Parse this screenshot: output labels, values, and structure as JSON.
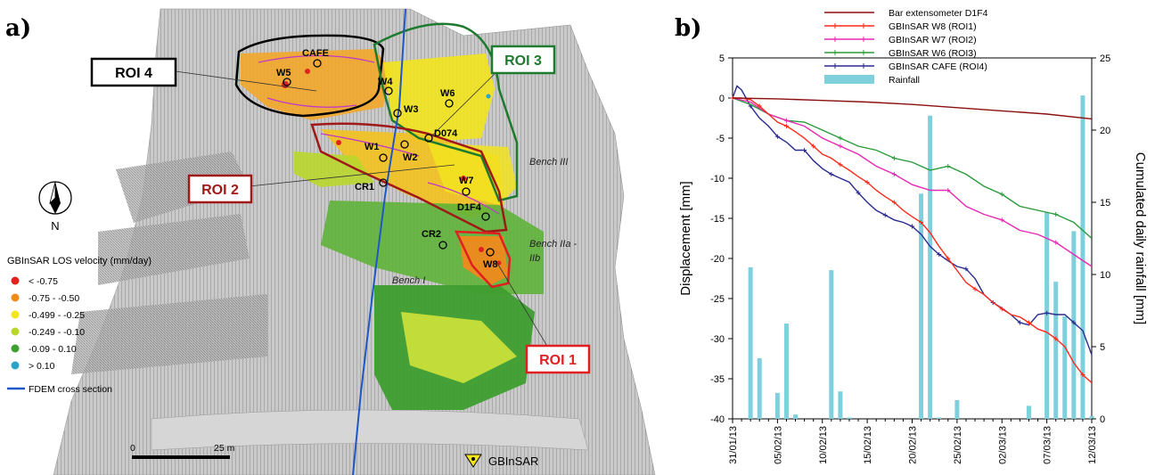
{
  "panel_a": {
    "label": "a)",
    "roi_labels": [
      {
        "text": "ROI 4",
        "color": "#000000"
      },
      {
        "text": "ROI 3",
        "color": "#1e7a2e"
      },
      {
        "text": "ROI 2",
        "color": "#a01818"
      },
      {
        "text": "ROI 1",
        "color": "#e02020"
      }
    ],
    "points": [
      "CAFE",
      "W5",
      "W4",
      "W3",
      "W6",
      "D074",
      "W1",
      "W2",
      "CR1",
      "W7",
      "D1F4",
      "CR2",
      "W8"
    ],
    "bench_labels": [
      "Bench III",
      "Bench IIa -",
      "IIb",
      "Bench I"
    ],
    "north_label": "N",
    "velocity_legend": {
      "title": "GBInSAR LOS velocity (mm/day)",
      "items": [
        {
          "label": "< -0.75",
          "color": "#e0231f"
        },
        {
          "label": "-0.75 - -0.50",
          "color": "#f08a1e"
        },
        {
          "label": "-0.499 - -0.25",
          "color": "#f2e41e"
        },
        {
          "label": "-0.249 - -0.10",
          "color": "#b9d62c"
        },
        {
          "label": "-0.09 - 0.10",
          "color": "#3e9e2f"
        },
        {
          "label": "> 0.10",
          "color": "#2aa3c9"
        }
      ],
      "line_label": "FDEM cross section",
      "line_color": "#1f57c7"
    },
    "scale": {
      "zero": "0",
      "end": "25 m"
    },
    "gbinsar_label": "GBInSAR"
  },
  "chart_data": {
    "type": "line",
    "panel_label": "b)",
    "xlabel": "",
    "ylabel": "Displacement [mm]",
    "y2label": "Cumulated daily rainfall [mm]",
    "ylim": [
      -40,
      5
    ],
    "y2lim": [
      0,
      25
    ],
    "yticks": [
      5,
      0,
      -5,
      -10,
      -15,
      -20,
      -25,
      -30,
      -35,
      -40
    ],
    "y2ticks": [
      25,
      20,
      15,
      10,
      5,
      0
    ],
    "xlim": [
      0,
      40
    ],
    "xtick_labels": [
      "31/01/13",
      "05/02/13",
      "10/02/13",
      "15/02/13",
      "20/02/13",
      "25/02/13",
      "02/03/13",
      "07/03/13",
      "12/03/13"
    ],
    "xtick_days": [
      0,
      5,
      10,
      15,
      20,
      25,
      30,
      35,
      40
    ],
    "legend": [
      {
        "name": "Bar extensometer D1F4",
        "color": "#8b0f0f",
        "kind": "line"
      },
      {
        "name": "GBInSAR W8 (ROI1)",
        "color": "#ff2a1a",
        "kind": "line-marker"
      },
      {
        "name": "GBInSAR W7 (ROI2)",
        "color": "#e62ab4",
        "kind": "line-marker"
      },
      {
        "name": "GBInSAR W6 (ROI3)",
        "color": "#2a9a3a",
        "kind": "line-marker"
      },
      {
        "name": "GBInSAR CAFE (ROI4)",
        "color": "#2a2a8f",
        "kind": "line-marker"
      },
      {
        "name": "Rainfall",
        "color": "#7fd0dc",
        "kind": "bar"
      }
    ],
    "series": [
      {
        "name": "Bar extensometer D1F4",
        "x": [
          0,
          5,
          10,
          15,
          20,
          25,
          30,
          35,
          40
        ],
        "values": [
          0,
          -0.1,
          -0.3,
          -0.5,
          -0.8,
          -1.2,
          -1.6,
          -2.0,
          -2.6
        ]
      },
      {
        "name": "GBInSAR W8 (ROI1)",
        "x": [
          0,
          1,
          2,
          3,
          4,
          5,
          6,
          7,
          8,
          9,
          10,
          11,
          12,
          13,
          14,
          15,
          16,
          17,
          18,
          19,
          20,
          21,
          22,
          23,
          24,
          25,
          26,
          27,
          28,
          29,
          30,
          31,
          32,
          33,
          34,
          35,
          36,
          37,
          38,
          39,
          40
        ],
        "values": [
          0,
          0,
          -0.2,
          -1.0,
          -2.0,
          -3.0,
          -3.5,
          -4.2,
          -5.0,
          -6.0,
          -7.0,
          -7.5,
          -8.3,
          -9.0,
          -9.8,
          -10.5,
          -11.5,
          -12.3,
          -13.0,
          -14.0,
          -14.8,
          -15.5,
          -16.8,
          -18.5,
          -20.0,
          -21.5,
          -23.0,
          -23.8,
          -24.5,
          -25.5,
          -26.3,
          -27.0,
          -27.3,
          -28.0,
          -28.8,
          -29.2,
          -30.0,
          -31.0,
          -33.0,
          -34.5,
          -35.5
        ]
      },
      {
        "name": "GBInSAR W7 (ROI2)",
        "x": [
          0,
          2,
          4,
          6,
          8,
          10,
          12,
          14,
          16,
          18,
          20,
          22,
          24,
          26,
          28,
          30,
          32,
          34,
          36,
          38,
          40
        ],
        "values": [
          0,
          -0.5,
          -2.0,
          -2.8,
          -3.5,
          -5.0,
          -6.0,
          -7.0,
          -8.5,
          -9.5,
          -10.8,
          -11.5,
          -11.5,
          -13.5,
          -14.5,
          -15.2,
          -16.5,
          -17.0,
          -18.0,
          -19.5,
          -21.0
        ]
      },
      {
        "name": "GBInSAR W6 (ROI3)",
        "x": [
          0,
          2,
          4,
          6,
          8,
          10,
          12,
          14,
          16,
          18,
          20,
          22,
          24,
          26,
          28,
          30,
          32,
          34,
          36,
          38,
          40
        ],
        "values": [
          0,
          -0.8,
          -2.0,
          -2.8,
          -3.0,
          -4.0,
          -5.0,
          -6.0,
          -6.5,
          -7.5,
          -8.0,
          -9.0,
          -8.5,
          -9.5,
          -11.0,
          -12.0,
          -13.5,
          -14.0,
          -14.5,
          -15.5,
          -17.5
        ]
      },
      {
        "name": "GBInSAR CAFE (ROI4)",
        "x": [
          0,
          0.5,
          1,
          2,
          3,
          4,
          5,
          6,
          7,
          8,
          9,
          10,
          11,
          12,
          13,
          14,
          15,
          16,
          17,
          18,
          19,
          20,
          21,
          22,
          23,
          24,
          25,
          26,
          27,
          28,
          29,
          30,
          31,
          32,
          33,
          34,
          35,
          36,
          37,
          38,
          39,
          40
        ],
        "values": [
          0,
          1.5,
          1.0,
          -1.0,
          -2.5,
          -3.5,
          -4.8,
          -5.5,
          -6.5,
          -6.5,
          -7.8,
          -8.8,
          -9.5,
          -10.0,
          -10.5,
          -11.8,
          -13.0,
          -14.0,
          -14.6,
          -15.2,
          -15.5,
          -16.0,
          -17.0,
          -18.5,
          -19.5,
          -20.3,
          -21.0,
          -21.3,
          -22.5,
          -24.5,
          -25.5,
          -26.2,
          -27.0,
          -28.0,
          -28.3,
          -27.0,
          -26.8,
          -27.0,
          -27.0,
          -28.0,
          -29.0,
          -32.0
        ]
      },
      {
        "name": "Rainfall",
        "type": "bar",
        "axis": "right",
        "x": [
          2,
          3,
          5,
          6,
          7,
          11,
          12,
          13,
          21,
          22,
          23,
          25,
          33,
          35,
          36,
          37,
          38,
          39,
          40
        ],
        "values": [
          10.5,
          4.2,
          1.8,
          6.6,
          0.3,
          10.3,
          1.9,
          0.1,
          15.6,
          21.0,
          0.1,
          1.3,
          0.9,
          14.3,
          9.5,
          7.1,
          13.0,
          22.4,
          0.2
        ]
      }
    ]
  }
}
